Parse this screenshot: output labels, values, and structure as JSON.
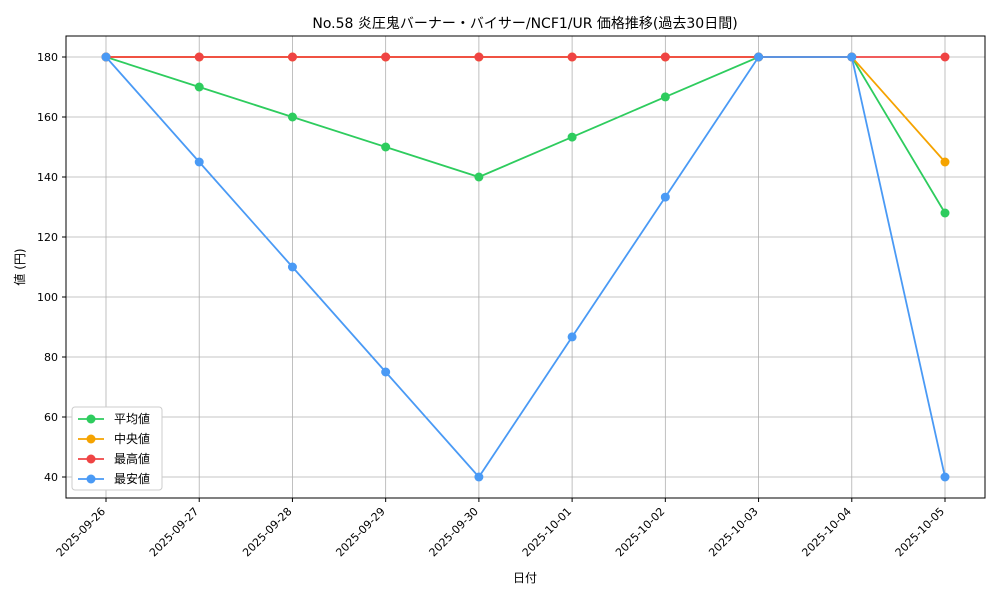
{
  "chart_data": {
    "type": "line",
    "title": "No.58 炎圧鬼バーナー・バイサー/NCF1/UR 価格推移(過去30日間)",
    "xlabel": "日付",
    "ylabel": "値 (円)",
    "x": [
      "2025-09-26",
      "2025-09-27",
      "2025-09-28",
      "2025-09-29",
      "2025-09-30",
      "2025-10-01",
      "2025-10-02",
      "2025-10-03",
      "2025-10-04",
      "2025-10-05"
    ],
    "ylim": [
      33,
      187
    ],
    "yticks": [
      40,
      60,
      80,
      100,
      120,
      140,
      160,
      180
    ],
    "grid": true,
    "legend_position": "lower-left",
    "series": [
      {
        "name": "平均値",
        "color": "#2ecc5e",
        "values": [
          180,
          170,
          160,
          150,
          140,
          153.3,
          166.7,
          180,
          180,
          128
        ]
      },
      {
        "name": "中央値",
        "color": "#f5a300",
        "values": [
          180,
          180,
          180,
          180,
          180,
          180,
          180,
          180,
          180,
          145
        ]
      },
      {
        "name": "最高値",
        "color": "#ef4444",
        "values": [
          180,
          180,
          180,
          180,
          180,
          180,
          180,
          180,
          180,
          180
        ]
      },
      {
        "name": "最安値",
        "color": "#4a9af5",
        "values": [
          180,
          145,
          110,
          75,
          40,
          86.7,
          133.3,
          180,
          180,
          40
        ]
      }
    ]
  }
}
